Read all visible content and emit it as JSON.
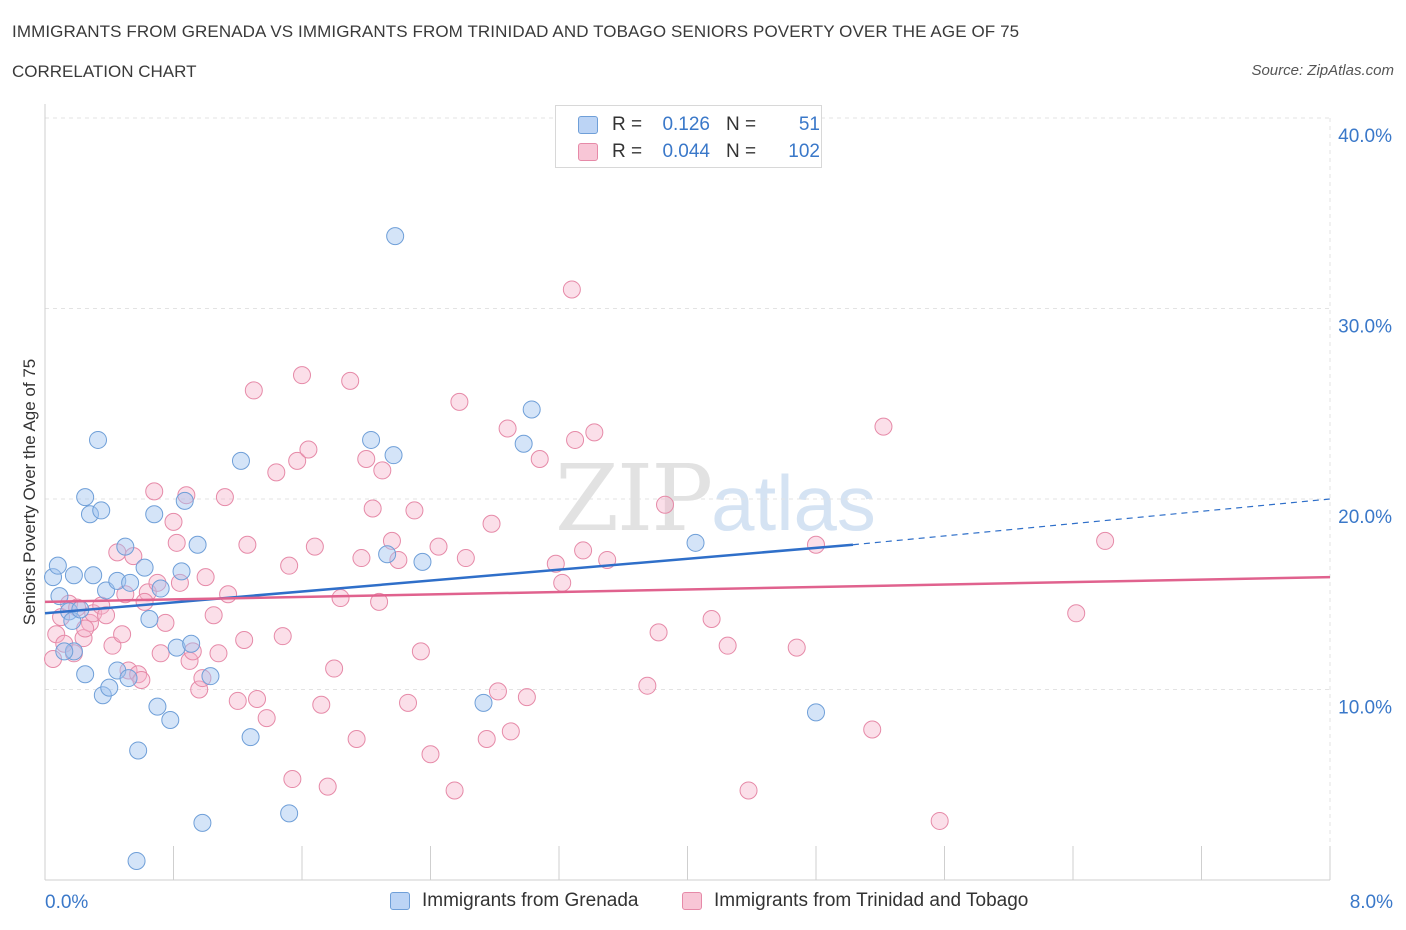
{
  "title": "IMMIGRANTS FROM GRENADA VS IMMIGRANTS FROM TRINIDAD AND TOBAGO SENIORS POVERTY OVER THE AGE OF 75",
  "subtitle": "CORRELATION CHART",
  "source": "Source: ZipAtlas.com",
  "watermark": {
    "zip": "ZIP",
    "atlas": "atlas"
  },
  "legend_stats": {
    "r_label": "R =",
    "n_label": "N =",
    "rows": [
      {
        "r": "0.126",
        "n": "51",
        "swatch_fill": "#bcd4f5",
        "swatch_border": "#6f9fd8"
      },
      {
        "r": "0.044",
        "n": "102",
        "swatch_fill": "#f8c6d6",
        "swatch_border": "#e68aa8"
      }
    ]
  },
  "bottom_legend": [
    {
      "label": "Immigrants from Grenada",
      "swatch_fill": "#bcd4f5",
      "swatch_border": "#6f9fd8"
    },
    {
      "label": "Immigrants from Trinidad and Tobago",
      "swatch_fill": "#f8c6d6",
      "swatch_border": "#e68aa8"
    }
  ],
  "colors": {
    "blue_fill": "rgba(160,195,240,0.45)",
    "blue_stroke": "#6f9fd8",
    "blue_line": "#2f6fc9",
    "pink_fill": "rgba(245,175,200,0.40)",
    "pink_stroke": "#e68aa8",
    "pink_line": "#e0628e",
    "tick_label": "#3a78c9",
    "grid": "#e3e3e3"
  },
  "chart_data": {
    "type": "scatter",
    "title": "IMMIGRANTS FROM GRENADA VS IMMIGRANTS FROM TRINIDAD AND TOBAGO SENIORS POVERTY OVER THE AGE OF 75",
    "xlabel": "",
    "ylabel": "Seniors Poverty Over the Age of 75",
    "xlim": [
      0,
      8.0
    ],
    "ylim": [
      0,
      40.0
    ],
    "x_tick_labels": [
      "0.0%",
      "8.0%"
    ],
    "y_ticks": [
      10,
      20,
      30,
      40
    ],
    "y_tick_labels": [
      "10.0%",
      "20.0%",
      "30.0%",
      "40.0%"
    ],
    "grid": true,
    "legend_position": "top-center",
    "series": [
      {
        "name": "Immigrants from Grenada",
        "R": 0.126,
        "N": 51,
        "trend": {
          "x": [
            0.0,
            5.03
          ],
          "y": [
            14.0,
            17.6
          ],
          "dashed_to": [
            8.0,
            20.0
          ]
        },
        "points": [
          [
            0.05,
            15.9
          ],
          [
            0.08,
            16.5
          ],
          [
            0.09,
            14.9
          ],
          [
            0.15,
            14.1
          ],
          [
            0.17,
            13.6
          ],
          [
            0.18,
            12.0
          ],
          [
            0.18,
            16.0
          ],
          [
            0.22,
            14.2
          ],
          [
            0.25,
            10.8
          ],
          [
            0.25,
            20.1
          ],
          [
            0.28,
            19.2
          ],
          [
            0.3,
            16.0
          ],
          [
            0.33,
            23.1
          ],
          [
            0.35,
            19.4
          ],
          [
            0.36,
            9.7
          ],
          [
            0.38,
            15.2
          ],
          [
            0.4,
            10.1
          ],
          [
            0.45,
            11.0
          ],
          [
            0.45,
            15.7
          ],
          [
            0.5,
            17.5
          ],
          [
            0.52,
            10.6
          ],
          [
            0.53,
            15.6
          ],
          [
            0.58,
            6.8
          ],
          [
            0.62,
            16.4
          ],
          [
            0.65,
            13.7
          ],
          [
            0.68,
            19.2
          ],
          [
            0.7,
            9.1
          ],
          [
            0.72,
            15.3
          ],
          [
            0.78,
            8.4
          ],
          [
            0.82,
            12.2
          ],
          [
            0.85,
            16.2
          ],
          [
            0.87,
            19.9
          ],
          [
            0.91,
            12.4
          ],
          [
            0.95,
            17.6
          ],
          [
            0.98,
            3.0
          ],
          [
            1.03,
            10.7
          ],
          [
            1.22,
            22.0
          ],
          [
            1.28,
            7.5
          ],
          [
            1.52,
            3.5
          ],
          [
            2.03,
            23.1
          ],
          [
            2.13,
            17.1
          ],
          [
            2.17,
            22.3
          ],
          [
            2.18,
            33.8
          ],
          [
            2.35,
            16.7
          ],
          [
            2.73,
            9.3
          ],
          [
            2.98,
            22.9
          ],
          [
            3.03,
            24.7
          ],
          [
            4.05,
            17.7
          ],
          [
            4.8,
            8.8
          ],
          [
            0.57,
            1.0
          ],
          [
            0.12,
            12.0
          ]
        ]
      },
      {
        "name": "Immigrants from Trinidad and Tobago",
        "R": 0.044,
        "N": 102,
        "trend": {
          "x": [
            0.0,
            8.0
          ],
          "y": [
            14.6,
            15.9
          ]
        },
        "points": [
          [
            0.05,
            11.6
          ],
          [
            0.07,
            12.9
          ],
          [
            0.1,
            13.8
          ],
          [
            0.12,
            12.4
          ],
          [
            0.15,
            14.5
          ],
          [
            0.18,
            11.9
          ],
          [
            0.2,
            14.3
          ],
          [
            0.24,
            12.7
          ],
          [
            0.28,
            13.5
          ],
          [
            0.3,
            14.0
          ],
          [
            0.35,
            14.4
          ],
          [
            0.38,
            13.9
          ],
          [
            0.42,
            12.3
          ],
          [
            0.45,
            17.2
          ],
          [
            0.48,
            12.9
          ],
          [
            0.5,
            15.0
          ],
          [
            0.52,
            11.0
          ],
          [
            0.55,
            17.0
          ],
          [
            0.58,
            10.8
          ],
          [
            0.6,
            10.5
          ],
          [
            0.64,
            15.1
          ],
          [
            0.68,
            20.4
          ],
          [
            0.7,
            15.6
          ],
          [
            0.72,
            11.9
          ],
          [
            0.75,
            13.5
          ],
          [
            0.8,
            18.8
          ],
          [
            0.82,
            17.7
          ],
          [
            0.84,
            15.6
          ],
          [
            0.88,
            20.2
          ],
          [
            0.9,
            11.5
          ],
          [
            0.92,
            12.0
          ],
          [
            0.96,
            10.0
          ],
          [
            0.98,
            10.6
          ],
          [
            1.0,
            15.9
          ],
          [
            1.05,
            13.9
          ],
          [
            1.08,
            11.9
          ],
          [
            1.12,
            20.1
          ],
          [
            1.14,
            15.0
          ],
          [
            1.2,
            9.4
          ],
          [
            1.24,
            12.6
          ],
          [
            1.26,
            17.6
          ],
          [
            1.3,
            25.7
          ],
          [
            1.32,
            9.5
          ],
          [
            1.38,
            8.5
          ],
          [
            1.44,
            21.4
          ],
          [
            1.48,
            12.8
          ],
          [
            1.52,
            16.5
          ],
          [
            1.54,
            5.3
          ],
          [
            1.57,
            22.0
          ],
          [
            1.6,
            26.5
          ],
          [
            1.64,
            22.6
          ],
          [
            1.68,
            17.5
          ],
          [
            1.72,
            9.2
          ],
          [
            1.76,
            4.9
          ],
          [
            1.8,
            11.1
          ],
          [
            1.84,
            14.8
          ],
          [
            1.9,
            26.2
          ],
          [
            1.94,
            7.4
          ],
          [
            1.97,
            16.9
          ],
          [
            2.0,
            22.1
          ],
          [
            2.04,
            19.5
          ],
          [
            2.08,
            14.6
          ],
          [
            2.1,
            21.5
          ],
          [
            2.16,
            17.8
          ],
          [
            2.2,
            16.8
          ],
          [
            2.26,
            9.3
          ],
          [
            2.3,
            19.4
          ],
          [
            2.34,
            12.0
          ],
          [
            2.4,
            6.6
          ],
          [
            2.45,
            17.5
          ],
          [
            2.55,
            4.7
          ],
          [
            2.58,
            25.1
          ],
          [
            2.62,
            16.9
          ],
          [
            2.75,
            7.4
          ],
          [
            2.78,
            18.7
          ],
          [
            2.82,
            9.9
          ],
          [
            2.88,
            23.7
          ],
          [
            2.9,
            7.8
          ],
          [
            3.0,
            9.6
          ],
          [
            3.08,
            22.1
          ],
          [
            3.18,
            16.6
          ],
          [
            3.22,
            15.6
          ],
          [
            3.28,
            31.0
          ],
          [
            3.3,
            23.1
          ],
          [
            3.35,
            17.3
          ],
          [
            3.42,
            23.5
          ],
          [
            3.5,
            16.8
          ],
          [
            3.75,
            10.2
          ],
          [
            3.82,
            13.0
          ],
          [
            3.86,
            19.7
          ],
          [
            4.15,
            13.7
          ],
          [
            4.25,
            12.3
          ],
          [
            4.38,
            4.7
          ],
          [
            4.68,
            12.2
          ],
          [
            4.8,
            17.6
          ],
          [
            5.15,
            7.9
          ],
          [
            5.22,
            23.8
          ],
          [
            5.57,
            3.1
          ],
          [
            6.42,
            14.0
          ],
          [
            6.6,
            17.8
          ],
          [
            0.25,
            13.2
          ],
          [
            0.62,
            14.6
          ]
        ]
      }
    ]
  }
}
